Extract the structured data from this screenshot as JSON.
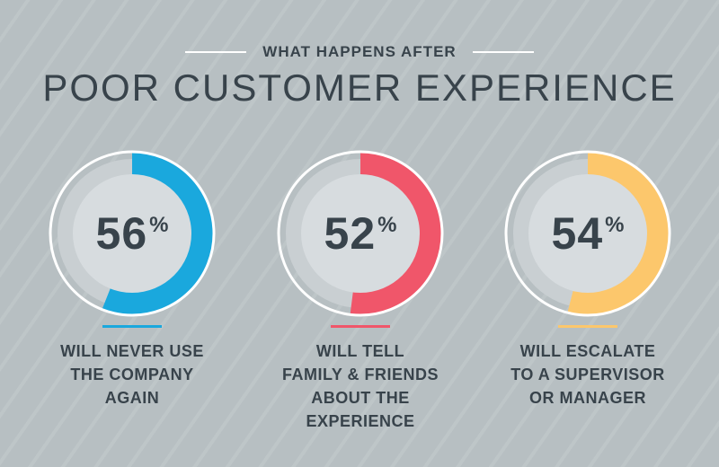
{
  "header": {
    "subtitle": "WHAT HAPPENS AFTER",
    "title": "POOR CUSTOMER EXPERIENCE"
  },
  "colors": {
    "ring_track": "#c9cfd2",
    "inner_disc": "#d7dcdf",
    "ring_border": "#ffffff",
    "text": "#38434b"
  },
  "chart_data": [
    {
      "type": "pie",
      "value": 56,
      "unit": "%",
      "color": "#1aa8dd",
      "caption": [
        "WILL NEVER USE",
        "THE COMPANY",
        "AGAIN"
      ]
    },
    {
      "type": "pie",
      "value": 52,
      "unit": "%",
      "color": "#f0566a",
      "caption": [
        "WILL TELL",
        "FAMILY & FRIENDS",
        "ABOUT THE",
        "EXPERIENCE"
      ]
    },
    {
      "type": "pie",
      "value": 54,
      "unit": "%",
      "color": "#fcc76c",
      "caption": [
        "WILL ESCALATE",
        "TO A SUPERVISOR",
        "OR MANAGER"
      ]
    }
  ]
}
